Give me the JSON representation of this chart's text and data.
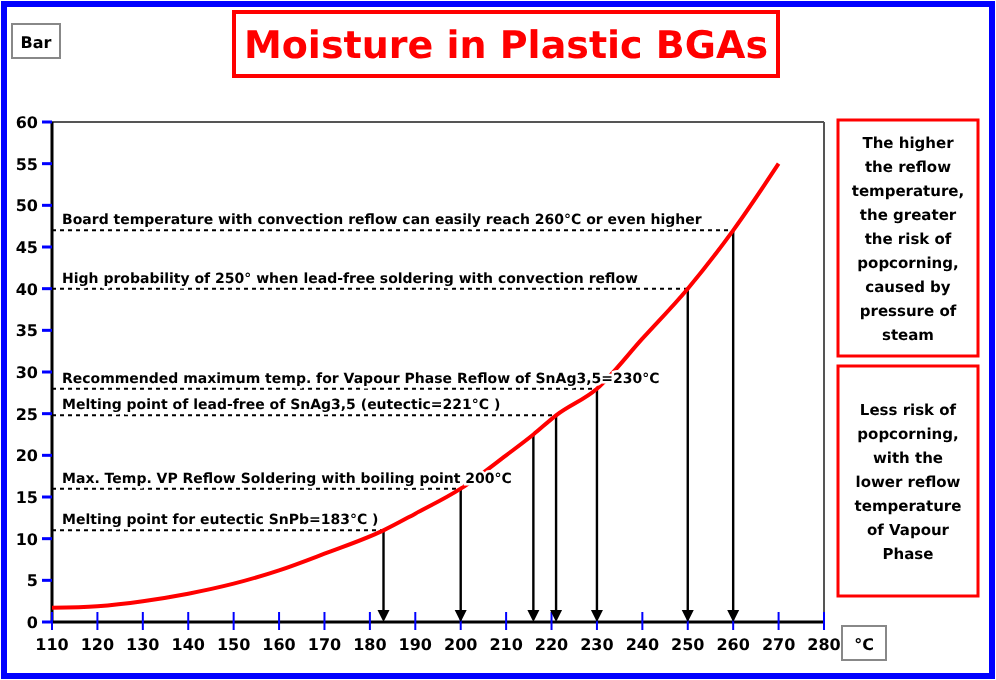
{
  "chart_data": {
    "type": "line",
    "title": "Moisture in Plastic BGAs",
    "xlabel": "°C",
    "ylabel": "Bar",
    "x": [
      110,
      120,
      130,
      140,
      150,
      160,
      170,
      183,
      190,
      200,
      210,
      216,
      221,
      230,
      240,
      250,
      260,
      270
    ],
    "series": [
      {
        "color": "#ff0000",
        "values": [
          1.7,
          1.9,
          2.5,
          3.4,
          4.6,
          6.2,
          8.2,
          11,
          13,
          16,
          20,
          22.5,
          24.8,
          28,
          34,
          40,
          47,
          55
        ]
      }
    ],
    "xlim": [
      110,
      280
    ],
    "ylim": [
      0,
      60
    ],
    "xticks": [
      110,
      120,
      130,
      140,
      150,
      160,
      170,
      180,
      190,
      200,
      210,
      220,
      230,
      240,
      250,
      260,
      270,
      280
    ],
    "yticks": [
      0,
      5,
      10,
      15,
      20,
      25,
      30,
      35,
      40,
      45,
      50,
      55,
      60
    ],
    "marker": "none",
    "line_style": "solid",
    "grid": false,
    "ref_lines": [
      {
        "axis": "x",
        "value": 260,
        "label": "Board temperature with convection reflow can easily reach 260°C or even higher",
        "color": "#000000"
      },
      {
        "axis": "x",
        "value": 250,
        "label": "High probability of 250° when lead-free soldering with convection reflow",
        "color": "#000000"
      },
      {
        "axis": "x",
        "value": 230,
        "label": "Recommended maximum temp. for Vapour Phase Reflow of SnAg3,5=230°C",
        "color": "#000000"
      },
      {
        "axis": "x",
        "value": 221,
        "label": "Melting point of lead-free of SnAg3,5 (eutectic=221°C )",
        "color": "#000000"
      },
      {
        "axis": "x",
        "value": 200,
        "label": "Max. Temp. VP Reflow Soldering with boiling point 200°C",
        "color": "#000000"
      },
      {
        "axis": "x",
        "value": 183,
        "label": "Melting point for eutectic SnPb=183°C )",
        "color": "#000000"
      },
      {
        "axis": "x",
        "value": 216,
        "color": "#000000"
      }
    ],
    "annotations": [
      "The higher the reflow temperature, the greater the risk of popcorning, caused by pressure of steam",
      "Less risk of popcorning, with the lower reflow temperature of Vapour Phase"
    ]
  }
}
